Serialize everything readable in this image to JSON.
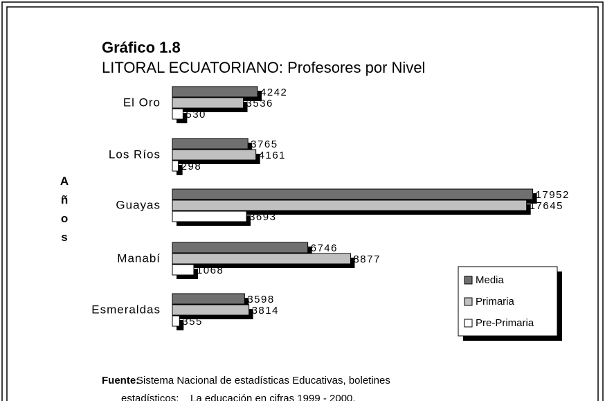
{
  "chart_data": {
    "type": "barh",
    "title": "Gráfico 1.8",
    "subtitle": "LITORAL ECUATORIANO: Profesores por Nivel",
    "y_label": "Años",
    "categories": [
      "El Oro",
      "Los Ríos",
      "Guayas",
      "Manabí",
      "Esmeraldas"
    ],
    "series": [
      {
        "name": "Media",
        "color": "#707070",
        "values": [
          4242,
          3765,
          17952,
          6746,
          3598
        ]
      },
      {
        "name": "Primaria",
        "color": "#c0c0c0",
        "values": [
          3536,
          4161,
          17645,
          8877,
          3814
        ]
      },
      {
        "name": "Pre-Primaria",
        "color": "#ffffff",
        "values": [
          530,
          298,
          3693,
          1068,
          355
        ]
      }
    ],
    "xlim": [
      0,
      18000
    ],
    "legend": "lower right",
    "source": {
      "label": "Fuente:",
      "lines": [
        "Sistema Nacional de estadísticas Educativas, boletines",
        "estadísticos:    La educación en cifras 1999 - 2000."
      ]
    }
  }
}
